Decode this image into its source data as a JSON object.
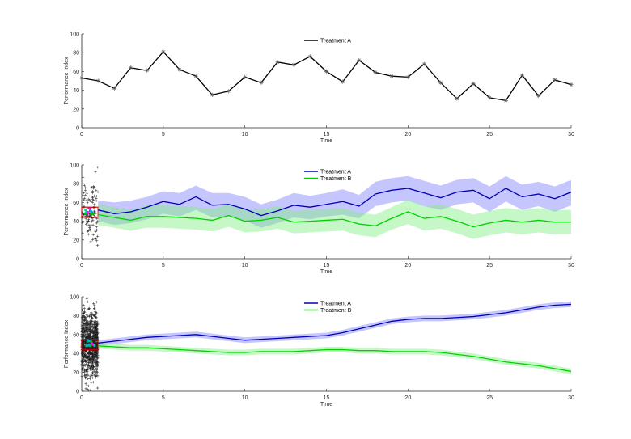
{
  "chart_data": [
    {
      "type": "line",
      "panel": "top",
      "xlabel": "Time",
      "ylabel": "Performance Index",
      "xlim": [
        0,
        30
      ],
      "ylim": [
        0,
        100
      ],
      "xticks": [
        "0",
        "5",
        "10",
        "15",
        "20",
        "25",
        "30"
      ],
      "yticks": [
        "0",
        "20",
        "40",
        "60",
        "80",
        "100"
      ],
      "legend_position": "top-center",
      "grid": false,
      "series": [
        {
          "name": "Treatment A",
          "color": "#000000",
          "marker": "asterisk",
          "x": [
            0,
            1,
            2,
            3,
            4,
            5,
            6,
            7,
            8,
            9,
            10,
            11,
            12,
            13,
            14,
            15,
            16,
            17,
            18,
            19,
            20,
            21,
            22,
            23,
            24,
            25,
            26,
            27,
            28,
            29,
            30
          ],
          "values": [
            53,
            50,
            42,
            64,
            61,
            81,
            62,
            55,
            35,
            39,
            54,
            48,
            70,
            67,
            76,
            60,
            49,
            72,
            59,
            55,
            54,
            68,
            48,
            31,
            47,
            32,
            29,
            56,
            34,
            51,
            46
          ]
        }
      ]
    },
    {
      "type": "line",
      "panel": "middle",
      "xlabel": "Time",
      "ylabel": "Performance Index",
      "xlim": [
        0,
        30
      ],
      "ylim": [
        0,
        100
      ],
      "xticks": [
        "0",
        "5",
        "10",
        "15",
        "20",
        "25",
        "30"
      ],
      "yticks": [
        "0",
        "20",
        "40",
        "60",
        "80",
        "100"
      ],
      "legend_position": "top-center",
      "grid": false,
      "series": [
        {
          "name": "Treatment A",
          "color": "#0000b4",
          "band_color": "#8080ff",
          "x": [
            1,
            2,
            3,
            4,
            5,
            6,
            7,
            8,
            9,
            10,
            11,
            12,
            13,
            14,
            15,
            16,
            17,
            18,
            19,
            20,
            21,
            22,
            23,
            24,
            25,
            26,
            27,
            28,
            29,
            30
          ],
          "values": [
            52,
            48,
            50,
            55,
            61,
            58,
            66,
            57,
            58,
            53,
            46,
            51,
            57,
            55,
            58,
            61,
            56,
            69,
            73,
            75,
            70,
            65,
            71,
            73,
            64,
            75,
            66,
            69,
            64,
            71
          ],
          "lower": [
            40,
            36,
            38,
            42,
            48,
            45,
            52,
            44,
            45,
            41,
            33,
            38,
            44,
            42,
            45,
            47,
            43,
            56,
            60,
            62,
            56,
            52,
            58,
            60,
            50,
            61,
            52,
            56,
            50,
            57
          ],
          "upper": [
            62,
            60,
            62,
            66,
            72,
            70,
            78,
            70,
            70,
            66,
            58,
            63,
            70,
            67,
            70,
            74,
            68,
            82,
            86,
            88,
            83,
            78,
            84,
            86,
            77,
            88,
            79,
            82,
            77,
            84
          ]
        },
        {
          "name": "Treatment B",
          "color": "#00d200",
          "band_color": "#80ee80",
          "x": [
            1,
            2,
            3,
            4,
            5,
            6,
            7,
            8,
            9,
            10,
            11,
            12,
            13,
            14,
            15,
            16,
            17,
            18,
            19,
            20,
            21,
            22,
            23,
            24,
            25,
            26,
            27,
            28,
            29,
            30
          ],
          "values": [
            47,
            44,
            41,
            45,
            45,
            44,
            43,
            41,
            46,
            40,
            41,
            44,
            39,
            40,
            41,
            42,
            37,
            35,
            43,
            50,
            43,
            45,
            40,
            34,
            38,
            41,
            39,
            41,
            39,
            39
          ],
          "lower": [
            36,
            33,
            30,
            33,
            33,
            32,
            31,
            29,
            34,
            28,
            29,
            32,
            27,
            28,
            29,
            30,
            25,
            23,
            31,
            37,
            30,
            32,
            27,
            21,
            25,
            28,
            26,
            28,
            26,
            26
          ],
          "upper": [
            58,
            55,
            52,
            57,
            57,
            56,
            55,
            53,
            58,
            52,
            53,
            56,
            51,
            52,
            53,
            54,
            49,
            47,
            55,
            63,
            56,
            58,
            53,
            47,
            51,
            54,
            52,
            54,
            52,
            52
          ]
        }
      ]
    },
    {
      "type": "line",
      "panel": "bottom",
      "xlabel": "Time",
      "ylabel": "Performance Index",
      "xlim": [
        0,
        30
      ],
      "ylim": [
        0,
        100
      ],
      "xticks": [
        "0",
        "5",
        "10",
        "15",
        "20",
        "25",
        "30"
      ],
      "yticks": [
        "0",
        "20",
        "40",
        "60",
        "80",
        "100"
      ],
      "legend_position": "top-center",
      "grid": false,
      "series": [
        {
          "name": "Treatment A",
          "color": "#0000b4",
          "band_color": "#8080ff",
          "x": [
            1,
            2,
            3,
            4,
            5,
            6,
            7,
            8,
            9,
            10,
            11,
            12,
            13,
            14,
            15,
            16,
            17,
            18,
            19,
            20,
            21,
            22,
            23,
            24,
            25,
            26,
            27,
            28,
            29,
            30
          ],
          "values": [
            51,
            53,
            55,
            57,
            58,
            59,
            60,
            58,
            56,
            54,
            55,
            56,
            57,
            58,
            59,
            62,
            66,
            70,
            74,
            76,
            77,
            77,
            78,
            79,
            81,
            83,
            86,
            89,
            91,
            92
          ],
          "lower": [
            48,
            50,
            52,
            54,
            55,
            56,
            57,
            55,
            53,
            51,
            52,
            53,
            54,
            55,
            56,
            59,
            63,
            67,
            71,
            73,
            74,
            74,
            75,
            76,
            78,
            80,
            83,
            86,
            88,
            89
          ],
          "upper": [
            54,
            56,
            58,
            60,
            61,
            62,
            63,
            61,
            59,
            57,
            58,
            59,
            60,
            61,
            62,
            65,
            69,
            73,
            77,
            79,
            80,
            80,
            81,
            82,
            84,
            86,
            89,
            92,
            94,
            95
          ]
        },
        {
          "name": "Treatment B",
          "color": "#00d200",
          "band_color": "#80ee80",
          "x": [
            1,
            2,
            3,
            4,
            5,
            6,
            7,
            8,
            9,
            10,
            11,
            12,
            13,
            14,
            15,
            16,
            17,
            18,
            19,
            20,
            21,
            22,
            23,
            24,
            25,
            26,
            27,
            28,
            29,
            30
          ],
          "values": [
            48,
            47,
            46,
            46,
            45,
            44,
            43,
            42,
            41,
            41,
            42,
            42,
            42,
            43,
            44,
            44,
            43,
            43,
            42,
            42,
            42,
            41,
            39,
            37,
            34,
            31,
            29,
            27,
            24,
            21
          ],
          "lower": [
            45,
            44,
            43,
            43,
            42,
            41,
            40,
            39,
            38,
            38,
            39,
            39,
            39,
            40,
            41,
            41,
            40,
            40,
            39,
            39,
            39,
            38,
            36,
            34,
            31,
            28,
            26,
            24,
            21,
            18
          ],
          "upper": [
            51,
            50,
            49,
            49,
            48,
            47,
            46,
            45,
            44,
            44,
            45,
            45,
            45,
            46,
            47,
            47,
            46,
            46,
            45,
            45,
            45,
            44,
            42,
            40,
            37,
            34,
            32,
            30,
            27,
            24
          ]
        }
      ]
    }
  ]
}
